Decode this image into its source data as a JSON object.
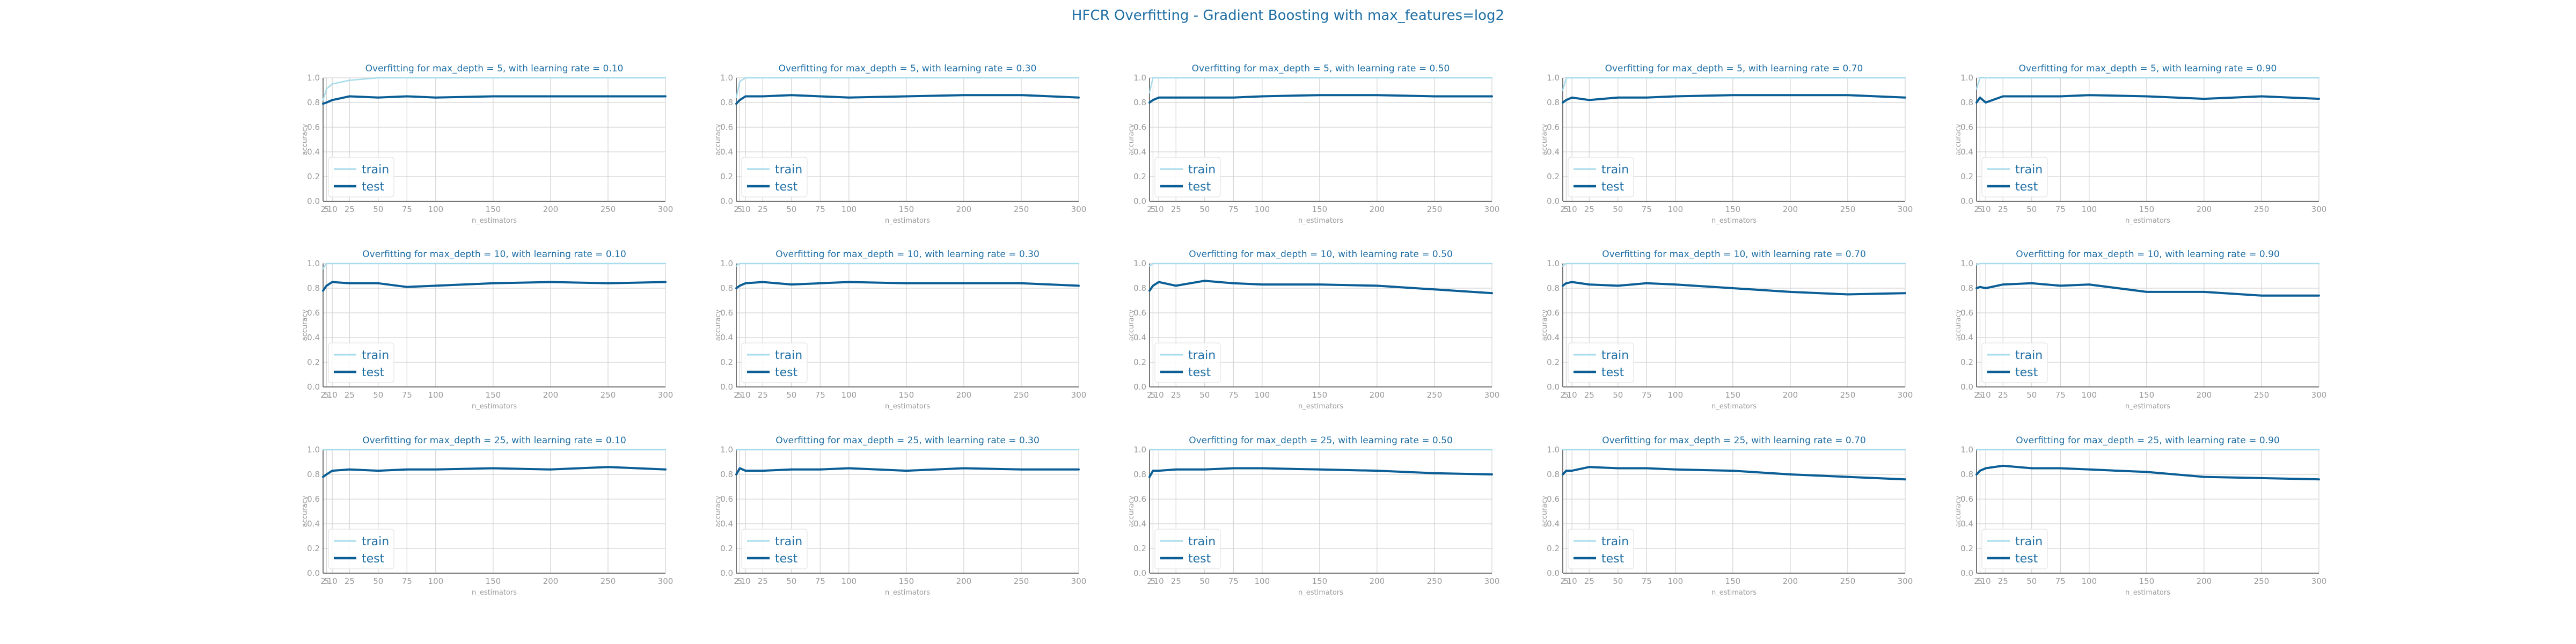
{
  "title": "HFCR Overfitting - Gradient Boosting with max_features=log2",
  "colors": {
    "train": "#a6dceb",
    "test": "#0b5f96",
    "title": "#1f6fa5",
    "grid": "#d3d3d3",
    "tick": "#9a9a9a"
  },
  "chart_data": {
    "type": "line",
    "layout": "3x5 grid of subplots",
    "xlabel": "n_estimators",
    "ylabel": "accuracy",
    "ylim": [
      0,
      1
    ],
    "xlim": [
      2,
      300
    ],
    "x": [
      2,
      5,
      10,
      25,
      50,
      75,
      100,
      150,
      200,
      250,
      300
    ],
    "xticks": [
      "2",
      "5",
      "10",
      "25",
      "50",
      "75",
      "100",
      "150",
      "200",
      "250",
      "300"
    ],
    "yticks": [
      "0.0",
      "0.2",
      "0.4",
      "0.6",
      "0.8",
      "1.0"
    ],
    "grid": true,
    "legend": {
      "position": "lower-left",
      "entries": [
        "train",
        "test"
      ]
    },
    "subplots": [
      {
        "title": "Overfitting for max_depth = 5, with learning rate = 0.10",
        "series": [
          {
            "name": "train",
            "values": [
              0.82,
              0.91,
              0.95,
              0.98,
              1.0,
              1.0,
              1.0,
              1.0,
              1.0,
              1.0,
              1.0
            ]
          },
          {
            "name": "test",
            "values": [
              0.79,
              0.8,
              0.82,
              0.85,
              0.84,
              0.85,
              0.84,
              0.85,
              0.85,
              0.85,
              0.85
            ]
          }
        ]
      },
      {
        "title": "Overfitting for max_depth = 5, with learning rate = 0.30",
        "series": [
          {
            "name": "train",
            "values": [
              0.84,
              0.97,
              1.0,
              1.0,
              1.0,
              1.0,
              1.0,
              1.0,
              1.0,
              1.0,
              1.0
            ]
          },
          {
            "name": "test",
            "values": [
              0.79,
              0.82,
              0.85,
              0.85,
              0.86,
              0.85,
              0.84,
              0.85,
              0.86,
              0.86,
              0.84
            ]
          }
        ]
      },
      {
        "title": "Overfitting for max_depth = 5, with learning rate = 0.50",
        "series": [
          {
            "name": "train",
            "values": [
              0.88,
              1.0,
              1.0,
              1.0,
              1.0,
              1.0,
              1.0,
              1.0,
              1.0,
              1.0,
              1.0
            ]
          },
          {
            "name": "test",
            "values": [
              0.8,
              0.82,
              0.84,
              0.84,
              0.84,
              0.84,
              0.85,
              0.86,
              0.86,
              0.85,
              0.85
            ]
          }
        ]
      },
      {
        "title": "Overfitting for max_depth = 5, with learning rate = 0.70",
        "series": [
          {
            "name": "train",
            "values": [
              0.9,
              1.0,
              1.0,
              1.0,
              1.0,
              1.0,
              1.0,
              1.0,
              1.0,
              1.0,
              1.0
            ]
          },
          {
            "name": "test",
            "values": [
              0.8,
              0.82,
              0.84,
              0.82,
              0.84,
              0.84,
              0.85,
              0.86,
              0.86,
              0.86,
              0.84
            ]
          }
        ]
      },
      {
        "title": "Overfitting for max_depth = 5, with learning rate = 0.90",
        "series": [
          {
            "name": "train",
            "values": [
              0.91,
              1.0,
              1.0,
              1.0,
              1.0,
              1.0,
              1.0,
              1.0,
              1.0,
              1.0,
              1.0
            ]
          },
          {
            "name": "test",
            "values": [
              0.8,
              0.84,
              0.8,
              0.85,
              0.85,
              0.85,
              0.86,
              0.85,
              0.83,
              0.85,
              0.83
            ]
          }
        ]
      },
      {
        "title": "Overfitting for max_depth = 10, with learning rate = 0.10",
        "series": [
          {
            "name": "train",
            "values": [
              0.96,
              1.0,
              1.0,
              1.0,
              1.0,
              1.0,
              1.0,
              1.0,
              1.0,
              1.0,
              1.0
            ]
          },
          {
            "name": "test",
            "values": [
              0.78,
              0.82,
              0.85,
              0.84,
              0.84,
              0.81,
              0.82,
              0.84,
              0.85,
              0.84,
              0.85
            ]
          }
        ]
      },
      {
        "title": "Overfitting for max_depth = 10, with learning rate = 0.30",
        "series": [
          {
            "name": "train",
            "values": [
              0.98,
              1.0,
              1.0,
              1.0,
              1.0,
              1.0,
              1.0,
              1.0,
              1.0,
              1.0,
              1.0
            ]
          },
          {
            "name": "test",
            "values": [
              0.8,
              0.82,
              0.84,
              0.85,
              0.83,
              0.84,
              0.85,
              0.84,
              0.84,
              0.84,
              0.82
            ]
          }
        ]
      },
      {
        "title": "Overfitting for max_depth = 10, with learning rate = 0.50",
        "series": [
          {
            "name": "train",
            "values": [
              0.98,
              1.0,
              1.0,
              1.0,
              1.0,
              1.0,
              1.0,
              1.0,
              1.0,
              1.0,
              1.0
            ]
          },
          {
            "name": "test",
            "values": [
              0.78,
              0.82,
              0.85,
              0.82,
              0.86,
              0.84,
              0.83,
              0.83,
              0.82,
              0.79,
              0.76
            ]
          }
        ]
      },
      {
        "title": "Overfitting for max_depth = 10, with learning rate = 0.70",
        "series": [
          {
            "name": "train",
            "values": [
              0.98,
              1.0,
              1.0,
              1.0,
              1.0,
              1.0,
              1.0,
              1.0,
              1.0,
              1.0,
              1.0
            ]
          },
          {
            "name": "test",
            "values": [
              0.82,
              0.84,
              0.85,
              0.83,
              0.82,
              0.84,
              0.83,
              0.8,
              0.77,
              0.75,
              0.76
            ]
          }
        ]
      },
      {
        "title": "Overfitting for max_depth = 10, with learning rate = 0.90",
        "series": [
          {
            "name": "train",
            "values": [
              0.99,
              1.0,
              1.0,
              1.0,
              1.0,
              1.0,
              1.0,
              1.0,
              1.0,
              1.0,
              1.0
            ]
          },
          {
            "name": "test",
            "values": [
              0.8,
              0.81,
              0.8,
              0.83,
              0.84,
              0.82,
              0.83,
              0.77,
              0.77,
              0.74,
              0.74
            ]
          }
        ]
      },
      {
        "title": "Overfitting for max_depth = 25, with learning rate = 0.10",
        "series": [
          {
            "name": "train",
            "values": [
              1.0,
              1.0,
              1.0,
              1.0,
              1.0,
              1.0,
              1.0,
              1.0,
              1.0,
              1.0,
              1.0
            ]
          },
          {
            "name": "test",
            "values": [
              0.78,
              0.8,
              0.83,
              0.84,
              0.83,
              0.84,
              0.84,
              0.85,
              0.84,
              0.86,
              0.84
            ]
          }
        ]
      },
      {
        "title": "Overfitting for max_depth = 25, with learning rate = 0.30",
        "series": [
          {
            "name": "train",
            "values": [
              1.0,
              1.0,
              1.0,
              1.0,
              1.0,
              1.0,
              1.0,
              1.0,
              1.0,
              1.0,
              1.0
            ]
          },
          {
            "name": "test",
            "values": [
              0.8,
              0.85,
              0.83,
              0.83,
              0.84,
              0.84,
              0.85,
              0.83,
              0.85,
              0.84,
              0.84
            ]
          }
        ]
      },
      {
        "title": "Overfitting for max_depth = 25, with learning rate = 0.50",
        "series": [
          {
            "name": "train",
            "values": [
              1.0,
              1.0,
              1.0,
              1.0,
              1.0,
              1.0,
              1.0,
              1.0,
              1.0,
              1.0,
              1.0
            ]
          },
          {
            "name": "test",
            "values": [
              0.78,
              0.83,
              0.83,
              0.84,
              0.84,
              0.85,
              0.85,
              0.84,
              0.83,
              0.81,
              0.8
            ]
          }
        ]
      },
      {
        "title": "Overfitting for max_depth = 25, with learning rate = 0.70",
        "series": [
          {
            "name": "train",
            "values": [
              1.0,
              1.0,
              1.0,
              1.0,
              1.0,
              1.0,
              1.0,
              1.0,
              1.0,
              1.0,
              1.0
            ]
          },
          {
            "name": "test",
            "values": [
              0.8,
              0.83,
              0.83,
              0.86,
              0.85,
              0.85,
              0.84,
              0.83,
              0.8,
              0.78,
              0.76
            ]
          }
        ]
      },
      {
        "title": "Overfitting for max_depth = 25, with learning rate = 0.90",
        "series": [
          {
            "name": "train",
            "values": [
              1.0,
              1.0,
              1.0,
              1.0,
              1.0,
              1.0,
              1.0,
              1.0,
              1.0,
              1.0,
              1.0
            ]
          },
          {
            "name": "test",
            "values": [
              0.8,
              0.83,
              0.85,
              0.87,
              0.85,
              0.85,
              0.84,
              0.82,
              0.78,
              0.77,
              0.76
            ]
          }
        ]
      }
    ]
  }
}
